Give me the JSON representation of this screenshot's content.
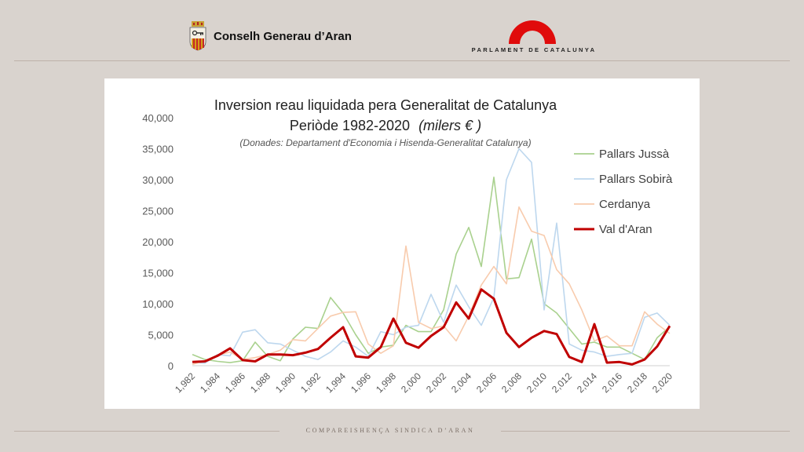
{
  "header": {
    "org_left": "Conselh Generau d’Aran",
    "org_right": "PARLAMENT DE CATALUNYA"
  },
  "footer": {
    "text": "COMPAREISHENÇA SINDICA D’ARAN"
  },
  "colors": {
    "Pallars Jussà": "#a9d18e",
    "Pallars Sobirà": "#bdd7ee",
    "Cerdanya": "#f8cbad",
    "Val d'Aran": "#c00000",
    "parlament_red": "#e00b0b"
  },
  "chart_data": {
    "type": "line",
    "title_line1": "Inversion reau liquidada pera Generalitat de Catalunya",
    "title_line2": "Periòde 1982-2020",
    "title_unit": "(milers € )",
    "subtitle": "(Donades: Departament d'Economia i Hisenda-Generalitat Catalunya)",
    "ylim": [
      0,
      40000
    ],
    "yticks": [
      "0",
      "5,000",
      "10,000",
      "15,000",
      "20,000",
      "25,000",
      "30,000",
      "35,000",
      "40,000"
    ],
    "x": [
      1982,
      1983,
      1984,
      1985,
      1986,
      1987,
      1988,
      1989,
      1990,
      1991,
      1992,
      1993,
      1994,
      1995,
      1996,
      1997,
      1998,
      1999,
      2000,
      2001,
      2002,
      2003,
      2004,
      2005,
      2006,
      2007,
      2008,
      2009,
      2010,
      2011,
      2012,
      2013,
      2014,
      2015,
      2016,
      2017,
      2018,
      2019,
      2020
    ],
    "xtick_labels": [
      "1,982",
      "1,984",
      "1,986",
      "1,988",
      "1,990",
      "1,992",
      "1,994",
      "1,996",
      "1,998",
      "2,000",
      "2,002",
      "2,004",
      "2,006",
      "2,008",
      "2,010",
      "2,012",
      "2,014",
      "2,016",
      "2,018",
      "2,020"
    ],
    "legend_position": "right",
    "grid": false,
    "series": [
      {
        "name": "Pallars Jussà",
        "values": [
          1800,
          1000,
          700,
          500,
          800,
          3800,
          1500,
          800,
          4300,
          6200,
          6000,
          11000,
          8500,
          5000,
          2000,
          3000,
          3300,
          6500,
          5500,
          5500,
          9000,
          18000,
          22300,
          16000,
          30400,
          14000,
          14200,
          20400,
          10000,
          8500,
          6000,
          3500,
          3800,
          3000,
          3000,
          2000,
          1000,
          4500,
          6300
        ]
      },
      {
        "name": "Pallars Sobirà",
        "values": [
          600,
          400,
          1800,
          1600,
          5400,
          5800,
          3700,
          3500,
          2500,
          1500,
          1000,
          2200,
          4000,
          3000,
          1500,
          5500,
          5000,
          6200,
          6500,
          11500,
          7000,
          13000,
          9500,
          6500,
          11000,
          30000,
          35000,
          32800,
          9000,
          23000,
          3500,
          2500,
          2200,
          1500,
          1800,
          2000,
          7800,
          8500,
          6500
        ]
      },
      {
        "name": "Cerdanya",
        "values": [
          200,
          800,
          1700,
          2200,
          1000,
          1300,
          1800,
          2500,
          4200,
          4000,
          6000,
          8000,
          8600,
          8700,
          3500,
          2000,
          3200,
          19300,
          7000,
          6000,
          6400,
          4000,
          8000,
          13000,
          16000,
          13200,
          25600,
          21700,
          21000,
          15500,
          13200,
          9000,
          4000,
          4800,
          3200,
          3200,
          8700,
          6700,
          5200
        ]
      },
      {
        "name": "Val d'Aran",
        "values": [
          600,
          700,
          1600,
          2800,
          900,
          700,
          1800,
          1800,
          1700,
          2100,
          2700,
          4500,
          6200,
          1500,
          1300,
          3000,
          7600,
          3700,
          2900,
          4800,
          6200,
          10200,
          7600,
          12300,
          10800,
          5300,
          3000,
          4500,
          5600,
          5100,
          1400,
          600,
          6700,
          500,
          600,
          200,
          1000,
          3100,
          6400
        ]
      }
    ]
  }
}
